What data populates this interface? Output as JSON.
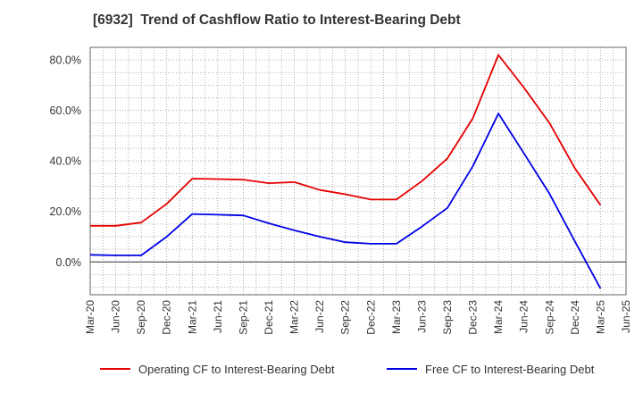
{
  "chart_data": {
    "type": "line",
    "title": "[6932]  Trend of Cashflow Ratio to Interest-Bearing Debt",
    "xlabel": "",
    "ylabel": "",
    "x": [
      "Mar-20",
      "Jun-20",
      "Sep-20",
      "Dec-20",
      "Mar-21",
      "Jun-21",
      "Sep-21",
      "Dec-21",
      "Mar-22",
      "Jun-22",
      "Sep-22",
      "Dec-22",
      "Mar-23",
      "Jun-23",
      "Sep-23",
      "Dec-23",
      "Mar-24",
      "Jun-24",
      "Sep-24",
      "Dec-24",
      "Mar-25",
      "Jun-25"
    ],
    "series": [
      {
        "name": "Operating CF to Interest-Bearing Debt",
        "color": "#e60000",
        "values": [
          14.3,
          14.3,
          15.6,
          23.0,
          33.0,
          32.8,
          32.6,
          31.2,
          31.6,
          28.5,
          26.8,
          24.7,
          24.7,
          32.0,
          41.0,
          57.0,
          82.0,
          69.0,
          55.0,
          37.0,
          22.5,
          null
        ]
      },
      {
        "name": "Free CF to Interest-Bearing Debt",
        "color": "#0000e6",
        "values": [
          2.8,
          2.6,
          2.6,
          10.0,
          19.0,
          18.7,
          18.4,
          15.3,
          12.5,
          10.0,
          7.8,
          7.2,
          7.2,
          14.0,
          21.4,
          38.0,
          58.8,
          43.0,
          27.0,
          8.0,
          -10.5,
          null
        ]
      }
    ],
    "y_ticks": [
      "80.0%",
      "60.0%",
      "40.0%",
      "20.0%",
      "0.0%"
    ],
    "y_tick_values": [
      80,
      60,
      40,
      20,
      0
    ],
    "ylim": [
      -13,
      85
    ],
    "grid": true,
    "legend_position": "bottom"
  }
}
